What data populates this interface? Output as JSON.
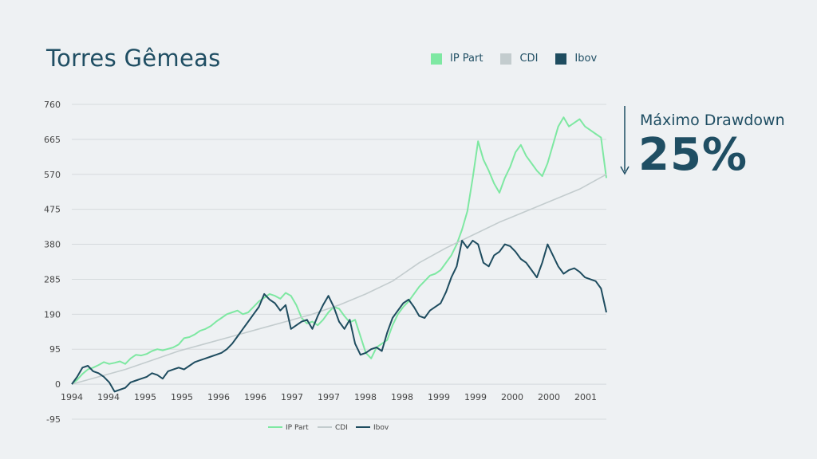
{
  "title": "Torres Gêmeas",
  "top_legend": [
    {
      "label": "IP Part",
      "color": "#7ee8a2"
    },
    {
      "label": "CDI",
      "color": "#c3ccce"
    },
    {
      "label": "Ibov",
      "color": "#1e4c5f"
    }
  ],
  "drawdown": {
    "label": "Máximo Drawdown",
    "value": "25%"
  },
  "chart_data": {
    "type": "line",
    "title": "",
    "xlabel": "",
    "ylabel": "",
    "ylim": [
      -95,
      760
    ],
    "yticks": [
      760,
      665,
      570,
      475,
      380,
      285,
      190,
      95,
      0,
      -95
    ],
    "xticks": [
      "1994",
      "1994",
      "1995",
      "1995",
      "1996",
      "1996",
      "1997",
      "1997",
      "1998",
      "1998",
      "1999",
      "1999",
      "2000",
      "2000",
      "2001"
    ],
    "grid": true,
    "legend_position": "bottom",
    "x_start": 0,
    "x_end": 1,
    "series": [
      {
        "name": "IP Part",
        "color": "#7ee8a2",
        "x": [
          0,
          0.01,
          0.02,
          0.03,
          0.04,
          0.05,
          0.06,
          0.07,
          0.08,
          0.09,
          0.1,
          0.11,
          0.12,
          0.13,
          0.14,
          0.15,
          0.16,
          0.17,
          0.18,
          0.19,
          0.2,
          0.21,
          0.22,
          0.23,
          0.24,
          0.25,
          0.26,
          0.27,
          0.28,
          0.29,
          0.3,
          0.31,
          0.32,
          0.33,
          0.34,
          0.35,
          0.36,
          0.37,
          0.38,
          0.39,
          0.4,
          0.41,
          0.42,
          0.43,
          0.44,
          0.45,
          0.46,
          0.47,
          0.48,
          0.49,
          0.5,
          0.51,
          0.52,
          0.53,
          0.54,
          0.55,
          0.56,
          0.57,
          0.58,
          0.59,
          0.6,
          0.61,
          0.62,
          0.63,
          0.64,
          0.65,
          0.66,
          0.67,
          0.68,
          0.69,
          0.7,
          0.71,
          0.72,
          0.73,
          0.74,
          0.75,
          0.76,
          0.77,
          0.78,
          0.79,
          0.8,
          0.81,
          0.82,
          0.83,
          0.84,
          0.85,
          0.86,
          0.87,
          0.88,
          0.89,
          0.9,
          0.91,
          0.92,
          0.93,
          0.94,
          0.95,
          0.96,
          0.97,
          0.98,
          0.99,
          1
        ],
        "y": [
          0,
          12,
          28,
          40,
          45,
          52,
          60,
          55,
          58,
          62,
          55,
          70,
          80,
          78,
          82,
          90,
          95,
          92,
          96,
          100,
          108,
          125,
          128,
          135,
          145,
          150,
          158,
          170,
          180,
          190,
          195,
          200,
          190,
          195,
          210,
          225,
          235,
          245,
          240,
          232,
          248,
          240,
          215,
          180,
          165,
          170,
          160,
          175,
          195,
          210,
          205,
          185,
          168,
          175,
          130,
          85,
          70,
          100,
          110,
          120,
          160,
          190,
          210,
          225,
          245,
          265,
          280,
          295,
          300,
          310,
          330,
          350,
          380,
          420,
          470,
          560,
          660,
          610,
          580,
          545,
          520,
          560,
          590,
          630,
          650,
          620,
          600,
          580,
          565,
          600,
          650,
          700,
          725,
          700,
          710,
          720,
          700,
          690,
          680,
          670,
          560
        ]
      },
      {
        "name": "CDI",
        "color": "#c3ccce",
        "x": [
          0,
          0.05,
          0.1,
          0.15,
          0.2,
          0.25,
          0.3,
          0.35,
          0.4,
          0.45,
          0.5,
          0.55,
          0.6,
          0.65,
          0.7,
          0.75,
          0.8,
          0.85,
          0.9,
          0.95,
          1
        ],
        "y": [
          0,
          20,
          40,
          65,
          90,
          110,
          130,
          150,
          170,
          190,
          215,
          245,
          280,
          330,
          370,
          405,
          440,
          470,
          500,
          530,
          570
        ]
      },
      {
        "name": "Ibov",
        "color": "#1e4c5f",
        "x": [
          0,
          0.01,
          0.02,
          0.03,
          0.04,
          0.05,
          0.06,
          0.07,
          0.08,
          0.09,
          0.1,
          0.11,
          0.12,
          0.13,
          0.14,
          0.15,
          0.16,
          0.17,
          0.18,
          0.19,
          0.2,
          0.21,
          0.22,
          0.23,
          0.24,
          0.25,
          0.26,
          0.27,
          0.28,
          0.29,
          0.3,
          0.31,
          0.32,
          0.33,
          0.34,
          0.35,
          0.36,
          0.37,
          0.38,
          0.39,
          0.4,
          0.41,
          0.42,
          0.43,
          0.44,
          0.45,
          0.46,
          0.47,
          0.48,
          0.49,
          0.5,
          0.51,
          0.52,
          0.53,
          0.54,
          0.55,
          0.56,
          0.57,
          0.58,
          0.59,
          0.6,
          0.61,
          0.62,
          0.63,
          0.64,
          0.65,
          0.66,
          0.67,
          0.68,
          0.69,
          0.7,
          0.71,
          0.72,
          0.73,
          0.74,
          0.75,
          0.76,
          0.77,
          0.78,
          0.79,
          0.8,
          0.81,
          0.82,
          0.83,
          0.84,
          0.85,
          0.86,
          0.87,
          0.88,
          0.89,
          0.9,
          0.91,
          0.92,
          0.93,
          0.94,
          0.95,
          0.96,
          0.97,
          0.98,
          0.99,
          1
        ],
        "y": [
          0,
          20,
          45,
          50,
          35,
          30,
          20,
          5,
          -20,
          -15,
          -10,
          5,
          10,
          15,
          20,
          30,
          25,
          15,
          35,
          40,
          45,
          40,
          50,
          60,
          65,
          70,
          75,
          80,
          85,
          95,
          110,
          130,
          150,
          170,
          190,
          210,
          245,
          230,
          220,
          200,
          215,
          150,
          160,
          170,
          175,
          150,
          185,
          215,
          240,
          210,
          170,
          150,
          175,
          110,
          80,
          85,
          95,
          100,
          90,
          140,
          180,
          200,
          220,
          230,
          210,
          185,
          180,
          200,
          210,
          220,
          250,
          290,
          320,
          390,
          370,
          390,
          380,
          330,
          320,
          350,
          360,
          380,
          375,
          360,
          340,
          330,
          310,
          290,
          330,
          380,
          350,
          320,
          300,
          310,
          315,
          305,
          290,
          285,
          280,
          260,
          195
        ]
      }
    ],
    "bottom_legend": [
      "IP Part",
      "CDI",
      "Ibov"
    ]
  }
}
